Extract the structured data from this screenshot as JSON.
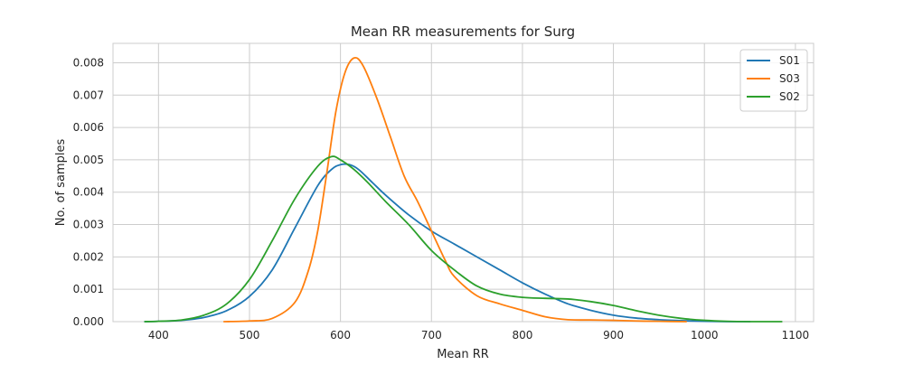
{
  "chart_data": {
    "type": "line",
    "title": "Mean RR measurements for Surg",
    "xlabel": "Mean RR",
    "ylabel": "No. of samples",
    "xlim": [
      350,
      1120
    ],
    "ylim": [
      0,
      0.0086
    ],
    "xticks": [
      400,
      500,
      600,
      700,
      800,
      900,
      1000,
      1100
    ],
    "xtick_labels": [
      "400",
      "500",
      "600",
      "700",
      "800",
      "900",
      "1000",
      "1100"
    ],
    "yticks": [
      0,
      0.001,
      0.002,
      0.003,
      0.004,
      0.005,
      0.006,
      0.007,
      0.008
    ],
    "ytick_labels": [
      "0.000",
      "0.001",
      "0.002",
      "0.003",
      "0.004",
      "0.005",
      "0.006",
      "0.007",
      "0.008"
    ],
    "grid": true,
    "legend_position": "top-right",
    "series": [
      {
        "name": "S01",
        "color": "#1f77b4",
        "x": [
          385,
          400,
          425,
          450,
          475,
          500,
          525,
          550,
          575,
          590,
          600,
          610,
          620,
          635,
          650,
          675,
          700,
          725,
          750,
          775,
          800,
          825,
          850,
          875,
          900,
          925,
          950,
          975,
          1000,
          1025,
          1050
        ],
        "y": [
          0.0,
          1e-05,
          4e-05,
          0.00013,
          0.00034,
          0.00078,
          0.0016,
          0.0029,
          0.0042,
          0.0047,
          0.00485,
          0.00485,
          0.0047,
          0.0043,
          0.0039,
          0.0033,
          0.0028,
          0.0024,
          0.002,
          0.0016,
          0.0012,
          0.00085,
          0.00055,
          0.00035,
          0.0002,
          0.00011,
          6e-05,
          3e-05,
          1e-05,
          0.0,
          0.0
        ]
      },
      {
        "name": "S03",
        "color": "#ff7f0e",
        "x": [
          472,
          500,
          525,
          550,
          565,
          575,
          585,
          595,
          605,
          615,
          625,
          640,
          655,
          670,
          685,
          700,
          715,
          725,
          750,
          775,
          800,
          825,
          850,
          875,
          900,
          925,
          950,
          980
        ],
        "y": [
          0.0,
          2e-05,
          0.0001,
          0.0006,
          0.0016,
          0.0028,
          0.0046,
          0.0065,
          0.0077,
          0.00815,
          0.0079,
          0.0069,
          0.0057,
          0.0045,
          0.0037,
          0.0028,
          0.0019,
          0.0014,
          0.0008,
          0.00055,
          0.00035,
          0.00015,
          6e-05,
          5e-05,
          4e-05,
          2e-05,
          1e-05,
          0.0
        ]
      },
      {
        "name": "S02",
        "color": "#2ca02c",
        "x": [
          385,
          400,
          425,
          450,
          475,
          500,
          525,
          550,
          575,
          590,
          600,
          615,
          630,
          650,
          675,
          700,
          725,
          750,
          775,
          800,
          825,
          850,
          875,
          900,
          925,
          950,
          975,
          1000,
          1025,
          1050,
          1085
        ],
        "y": [
          0.0,
          1e-05,
          5e-05,
          0.0002,
          0.00055,
          0.0013,
          0.0025,
          0.0038,
          0.0048,
          0.0051,
          0.005,
          0.0047,
          0.0043,
          0.0037,
          0.003,
          0.0022,
          0.0016,
          0.0011,
          0.00085,
          0.00075,
          0.00072,
          0.0007,
          0.00062,
          0.0005,
          0.00034,
          0.0002,
          0.0001,
          4e-05,
          1e-05,
          0.0,
          0.0
        ]
      }
    ]
  }
}
